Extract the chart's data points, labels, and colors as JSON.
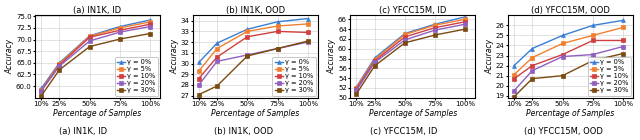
{
  "x_ticks": [
    "10%",
    "25%",
    "50%",
    "75%",
    "100%"
  ],
  "x_vals": [
    10,
    25,
    50,
    75,
    100
  ],
  "gamma_labels": [
    "γ = 0%",
    "γ = 5%",
    "γ = 10%",
    "γ = 20%",
    "γ = 30%"
  ],
  "colors": [
    "#3a7fd5",
    "#f08030",
    "#d04040",
    "#9060c0",
    "#7a4a10"
  ],
  "plots": [
    {
      "title": "(a) IN1K, ID",
      "ylabel": "Accuracy",
      "xlabel": "Percentage of Samples",
      "ylim": [
        57.5,
        75.2
      ],
      "yticks": [
        60.0,
        62.5,
        65.0,
        67.5,
        70.0,
        72.5,
        75.0
      ],
      "has_legend": true,
      "series": [
        [
          59.5,
          65.0,
          70.8,
          72.8,
          74.2
        ],
        [
          59.2,
          64.8,
          70.7,
          72.5,
          73.8
        ],
        [
          59.0,
          64.5,
          70.5,
          72.0,
          73.3
        ],
        [
          59.0,
          64.3,
          69.7,
          71.6,
          72.8
        ],
        [
          57.9,
          63.5,
          68.5,
          70.1,
          71.3
        ]
      ]
    },
    {
      "title": "(b) IN1K, OOD",
      "ylabel": "Accuracy",
      "xlabel": "Percentage of Samples",
      "ylim": [
        26.8,
        34.5
      ],
      "yticks": [
        27.0,
        28.0,
        29.0,
        30.0,
        31.0,
        32.0,
        33.0,
        34.0
      ],
      "has_legend": true,
      "series": [
        [
          30.1,
          31.9,
          33.2,
          33.9,
          34.2
        ],
        [
          29.3,
          31.4,
          33.0,
          33.5,
          33.7
        ],
        [
          28.6,
          30.6,
          32.5,
          33.0,
          32.9
        ],
        [
          28.0,
          30.2,
          30.8,
          31.4,
          32.0
        ],
        [
          27.1,
          27.9,
          30.7,
          31.4,
          32.1
        ]
      ]
    },
    {
      "title": "(c) YFCC15M, ID",
      "ylabel": "Accuracy",
      "xlabel": "Percentage of Samples",
      "ylim": [
        50.0,
        66.8
      ],
      "yticks": [
        50.0,
        52.0,
        54.0,
        56.0,
        58.0,
        60.0,
        62.0,
        64.0,
        66.0
      ],
      "has_legend": false,
      "series": [
        [
          52.2,
          58.1,
          63.1,
          65.0,
          66.5
        ],
        [
          52.0,
          57.8,
          62.9,
          64.8,
          66.0
        ],
        [
          51.8,
          57.5,
          62.4,
          64.3,
          65.5
        ],
        [
          51.5,
          57.2,
          61.8,
          63.8,
          65.0
        ],
        [
          50.8,
          56.5,
          61.2,
          62.8,
          64.0
        ]
      ]
    },
    {
      "title": "(d) YFCC15M, OOD",
      "ylabel": "Accuracy",
      "xlabel": "Percentage of Samples",
      "ylim": [
        18.8,
        27.0
      ],
      "yticks": [
        19.0,
        20.0,
        21.0,
        22.0,
        23.0,
        24.0,
        25.0,
        26.0
      ],
      "has_legend": true,
      "series": [
        [
          22.0,
          23.7,
          25.0,
          26.0,
          26.5
        ],
        [
          21.1,
          22.8,
          24.2,
          25.0,
          25.8
        ],
        [
          20.7,
          22.0,
          23.1,
          24.5,
          24.5
        ],
        [
          19.5,
          21.5,
          22.9,
          23.1,
          23.9
        ],
        [
          18.9,
          20.7,
          21.0,
          22.5,
          23.2
        ]
      ]
    }
  ],
  "grid_color": "#cccccc",
  "linewidth": 1.0,
  "markersize": 2.8,
  "tick_fontsize": 5.0,
  "label_fontsize": 5.5,
  "title_fontsize": 6.0,
  "legend_fontsize": 4.8,
  "caption": "(a) IN1K, ID          (b) IN1K, OOD          (c) YFCC15M, ID          (d) YFCC15M, OOD"
}
